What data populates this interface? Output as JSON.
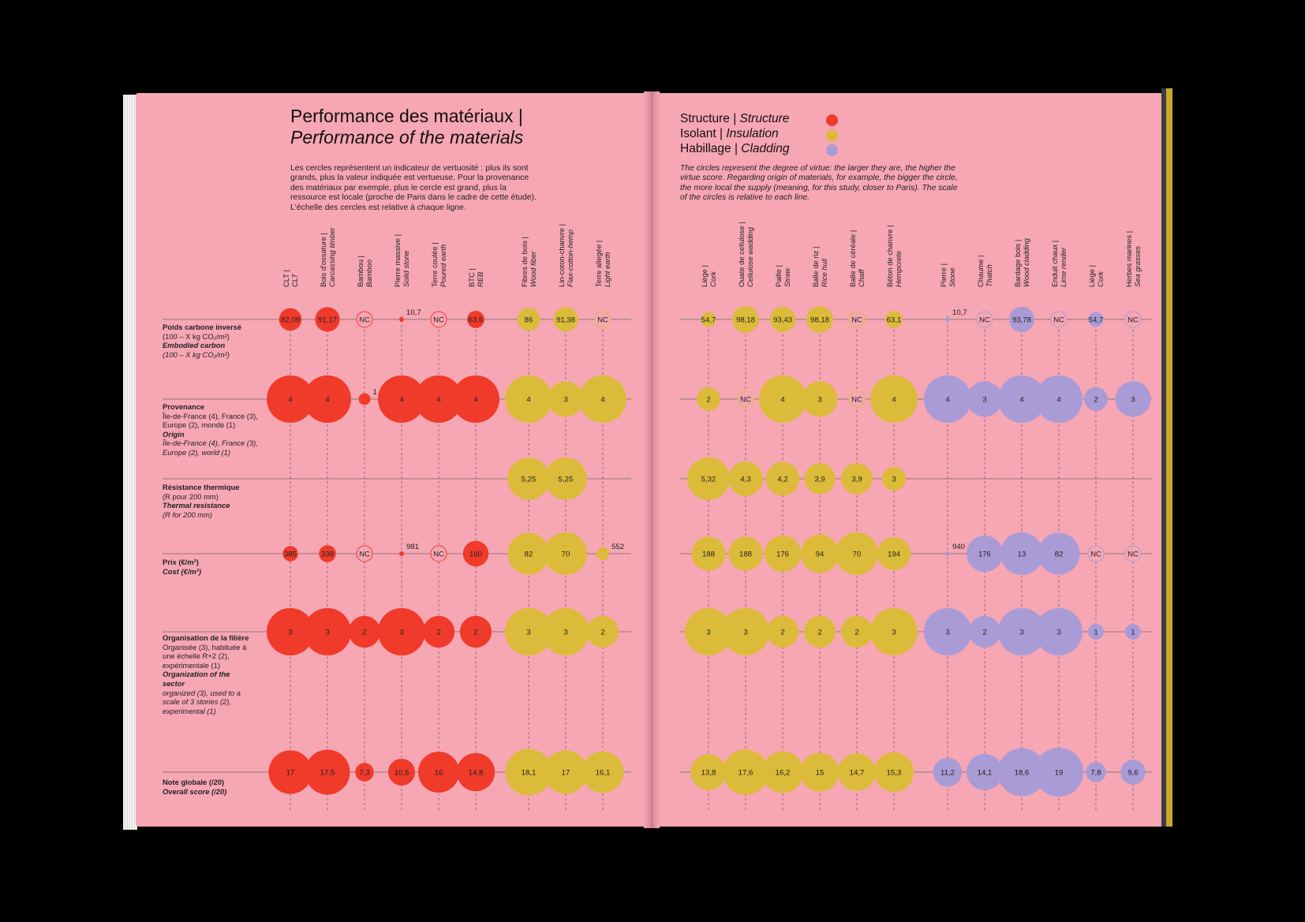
{
  "title_fr": "Performance des matériaux |",
  "title_en": "Performance of the materials",
  "intro_fr": "Les cercles représentent un indicateur de vertuosité : plus ils sont grands, plus la valeur indiquée est vertueuse. Pour la provenance des matériaux par exemple, plus le cercle est grand, plus la ressource est locale (proche de Paris dans le cadre de cette étude). L'échelle des cercles est relative à chaque ligne.",
  "intro_en": "The circles represent the degree of virtue: the larger they are, the higher the virtue score. Regarding origin of materials, for example, the bigger the circle, the more local the supply (meaning, for this study, closer to Paris). The scale of the circles is relative to each line.",
  "legend": [
    {
      "fr": "Structure",
      "en": "Structure",
      "color": "#f03a2a"
    },
    {
      "fr": "Isolant",
      "en": "Insulation",
      "color": "#dcbb3a"
    },
    {
      "fr": "Habillage",
      "en": "Cladding",
      "color": "#a99bd6"
    }
  ],
  "rows": [
    {
      "fr": "Poids carbone inversé",
      "fr_sub": "(100 – X kg CO₂/m²)",
      "en": "Embodied carbon",
      "en_sub": "(100 – X kg CO₂/m²)"
    },
    {
      "fr": "Provenance",
      "fr_sub": "Île-de-France (4), France (3), Europe (2), monde (1)",
      "en": "Origin",
      "en_sub": "Île-de-France (4), France (3), Europe (2), world (1)"
    },
    {
      "fr": "Résistance thermique",
      "fr_sub": "(R pour 200 mm)",
      "en": "Thermal resistance",
      "en_sub": "(R for 200 mm)"
    },
    {
      "fr": "Prix (€/m²)",
      "fr_sub": "",
      "en": "Cost (€/m²)",
      "en_sub": ""
    },
    {
      "fr": "Organisation de la filière",
      "fr_sub": "Organisée (3), habituée à une échelle R+2 (2), expérimentale (1)",
      "en": "Organization of the sector",
      "en_sub": "organized (3), used to a scale of 3 stories (2), experimental (1)"
    },
    {
      "fr": "Note globale (/20)",
      "fr_sub": "",
      "en": "Overall score (/20)",
      "en_sub": ""
    }
  ],
  "columns": [
    {
      "fr": "CLT |",
      "en": "CLT",
      "category": "structure"
    },
    {
      "fr": "Bois d'ossature |",
      "en": "Carcassing timber",
      "category": "structure"
    },
    {
      "fr": "Bambou |",
      "en": "Bamboo",
      "category": "structure"
    },
    {
      "fr": "Pierre massive |",
      "en": "Solid stone",
      "category": "structure"
    },
    {
      "fr": "Terre coulée |",
      "en": "Poured earth",
      "category": "structure"
    },
    {
      "fr": "BTC |",
      "en": "REB",
      "category": "structure"
    },
    {
      "fr": "Fibres de bois |",
      "en": "Wood fiber",
      "category": "insulation"
    },
    {
      "fr": "Lin-coton-chanvre |",
      "en": "Flax-cotton-hemp",
      "category": "insulation"
    },
    {
      "fr": "Terre allegée |",
      "en": "Light earth",
      "category": "insulation"
    },
    {
      "fr": "Liège |",
      "en": "Cork",
      "category": "insulation"
    },
    {
      "fr": "Ouate de cellulose |",
      "en": "Cellulose wadding",
      "category": "insulation"
    },
    {
      "fr": "Paille |",
      "en": "Straw",
      "category": "insulation"
    },
    {
      "fr": "Balle de riz |",
      "en": "Rice hull",
      "category": "insulation"
    },
    {
      "fr": "Balle de céréale |",
      "en": "Chaff",
      "category": "insulation"
    },
    {
      "fr": "Béton de chanvre |",
      "en": "Hempcrete",
      "category": "insulation"
    },
    {
      "fr": "Pierre |",
      "en": "Stone",
      "category": "cladding"
    },
    {
      "fr": "Chaume |",
      "en": "Thatch",
      "category": "cladding"
    },
    {
      "fr": "Bardage bois |",
      "en": "Wood cladding",
      "category": "cladding"
    },
    {
      "fr": "Enduit chaux |",
      "en": "Lime render",
      "category": "cladding"
    },
    {
      "fr": "Liège |",
      "en": "Cork",
      "category": "cladding"
    },
    {
      "fr": "Herbes marines |",
      "en": "Sea grasses",
      "category": "cladding"
    }
  ],
  "chart_data": {
    "type": "bubble-matrix",
    "note": "Circle size reflects virtue score, relative to each row.",
    "values": [
      [
        "82,09",
        "91,17",
        "NC",
        "10,7",
        "NC",
        "63,6",
        "86",
        "91,38",
        "NC",
        "54,7",
        "98,18",
        "93,43",
        "98,18",
        "NC",
        "63,1",
        "10,7",
        "NC",
        "93,78",
        "NC",
        "54,7",
        "NC"
      ],
      [
        "4",
        "4",
        "1",
        "4",
        "4",
        "4",
        "4",
        "3",
        "4",
        "2",
        "NC",
        "4",
        "3",
        "NC",
        "4",
        "4",
        "3",
        "4",
        "4",
        "2",
        "3"
      ],
      [
        null,
        null,
        null,
        null,
        null,
        null,
        "5,25",
        "5,25",
        null,
        "5,32",
        "4,3",
        "4,2",
        "3,9",
        "3,9",
        "3",
        null,
        null,
        null,
        null,
        null,
        null
      ],
      [
        "385",
        "338",
        "NC",
        "981",
        "NC",
        "160",
        "82",
        "70",
        "552",
        "188",
        "188",
        "176",
        "94",
        "70",
        "194",
        "940",
        "176",
        "13",
        "82",
        "NC",
        "NC"
      ],
      [
        "3",
        "3",
        "2",
        "3",
        "2",
        "2",
        "3",
        "3",
        "2",
        "3",
        "3",
        "2",
        "2",
        "2",
        "3",
        "3",
        "2",
        "3",
        "3",
        "1",
        "1"
      ],
      [
        "17",
        "17,5",
        "7,3",
        "10,5",
        "16",
        "14,8",
        "18,1",
        "17",
        "16,1",
        "13,8",
        "17,6",
        "16,2",
        "15",
        "14,7",
        "15,3",
        "11,2",
        "14,1",
        "18,6",
        "19",
        "7,8",
        "9,6"
      ]
    ],
    "sizes": [
      [
        0.55,
        0.6,
        0,
        0.07,
        0,
        0.42,
        0.56,
        0.6,
        0,
        0.36,
        0.65,
        0.62,
        0.65,
        0,
        0.42,
        0.07,
        0,
        0.62,
        0,
        0.36,
        0
      ],
      [
        1,
        1,
        0.25,
        1,
        1,
        1,
        1,
        0.75,
        1,
        0.5,
        0,
        1,
        0.75,
        0,
        1,
        1,
        0.75,
        1,
        1,
        0.5,
        0.75
      ],
      [
        0,
        0,
        0,
        0,
        0,
        0,
        0.99,
        0.99,
        0,
        1,
        0.81,
        0.79,
        0.73,
        0.73,
        0.56,
        0,
        0,
        0,
        0,
        0,
        0
      ],
      [
        0.36,
        0.4,
        0,
        0.06,
        0,
        0.6,
        0.98,
        1,
        0.3,
        0.8,
        0.8,
        0.85,
        0.9,
        1,
        0.78,
        0.08,
        0.85,
        1,
        0.98,
        0,
        0
      ],
      [
        1,
        1,
        0.67,
        1,
        0.67,
        0.67,
        1,
        1,
        0.67,
        1,
        1,
        0.67,
        0.67,
        0.67,
        1,
        1,
        0.67,
        1,
        1,
        0.33,
        0.33
      ],
      [
        0.89,
        0.92,
        0.38,
        0.55,
        0.84,
        0.78,
        0.95,
        0.89,
        0.85,
        0.73,
        0.93,
        0.85,
        0.79,
        0.77,
        0.81,
        0.59,
        0.74,
        0.98,
        1,
        0.41,
        0.51
      ]
    ]
  }
}
